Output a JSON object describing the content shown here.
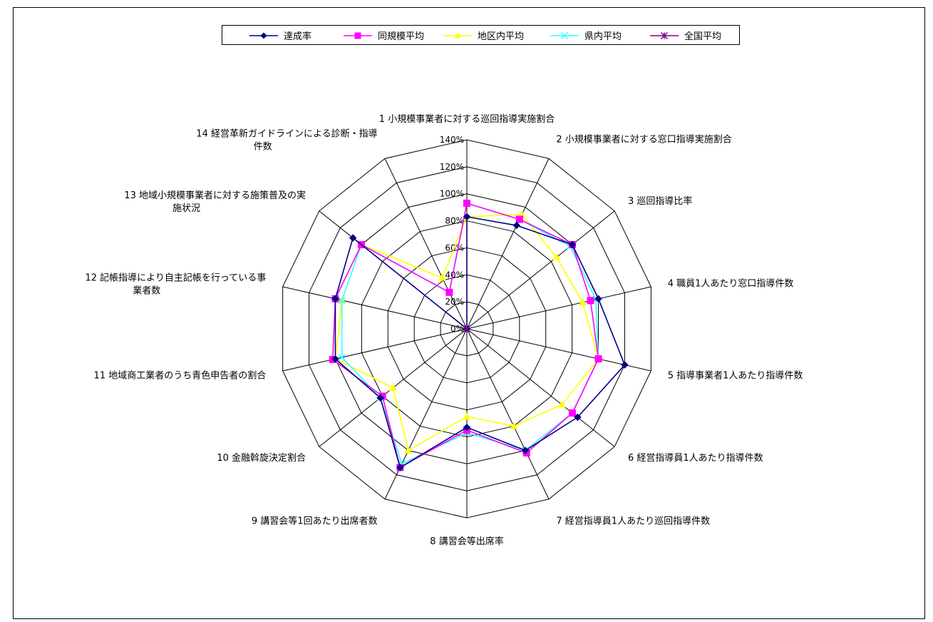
{
  "chart_data": {
    "type": "radar",
    "title": "",
    "axes": [
      "1 小規模事業者に対する巡回指導実施割合",
      "2 小規模事業者に対する窓口指導実施割合",
      "3 巡回指導比率",
      "4 職員1人あたり窓口指導件数",
      "5 指導事業者1人あたり指導件数",
      "6 経営指導員1人あたり指導件数",
      "7 経営指導員1人あたり巡回指導件数",
      "8 講習会等出席率",
      "9 講習会等1回あたり出席者数",
      "10 金融斡旋決定割合",
      "11 地域商工業者のうち青色申告者の割合",
      "12 記帳指導により自主記帳を行っている事業者数",
      "13 地域小規模事業者に対する施策普及の実施状況",
      "14 経営革新ガイドラインによる診断・指導件数"
    ],
    "rticks": [
      "0%",
      "20%",
      "40%",
      "60%",
      "80%",
      "100%",
      "120%",
      "140%"
    ],
    "rlim": [
      0,
      140
    ],
    "legend_position": "top",
    "series": [
      {
        "name": "達成率",
        "color": "#000080",
        "marker": "diamond",
        "values": [
          83,
          85,
          100,
          100,
          120,
          105,
          100,
          73,
          114,
          82,
          100,
          100,
          108,
          0
        ]
      },
      {
        "name": "同規模平均",
        "color": "#FF00FF",
        "marker": "square",
        "values": [
          93,
          90,
          100,
          94,
          100,
          100,
          102,
          75,
          114,
          80,
          102,
          100,
          100,
          30
        ]
      },
      {
        "name": "地区内平均",
        "color": "#FFFF00",
        "marker": "triangle",
        "values": [
          83,
          94,
          85,
          88,
          100,
          90,
          80,
          65,
          100,
          70,
          100,
          95,
          100,
          42
        ]
      },
      {
        "name": "県内平均",
        "color": "#33FFFF",
        "marker": "x",
        "values": [
          93,
          90,
          98,
          98,
          100,
          100,
          100,
          77,
          111,
          82,
          95,
          95,
          100,
          30
        ]
      },
      {
        "name": "全国平均",
        "color": "#800080",
        "marker": "asterisk",
        "values": [
          0,
          0,
          0,
          0,
          0,
          0,
          0,
          0,
          0,
          0,
          0,
          0,
          0,
          0
        ]
      }
    ]
  }
}
